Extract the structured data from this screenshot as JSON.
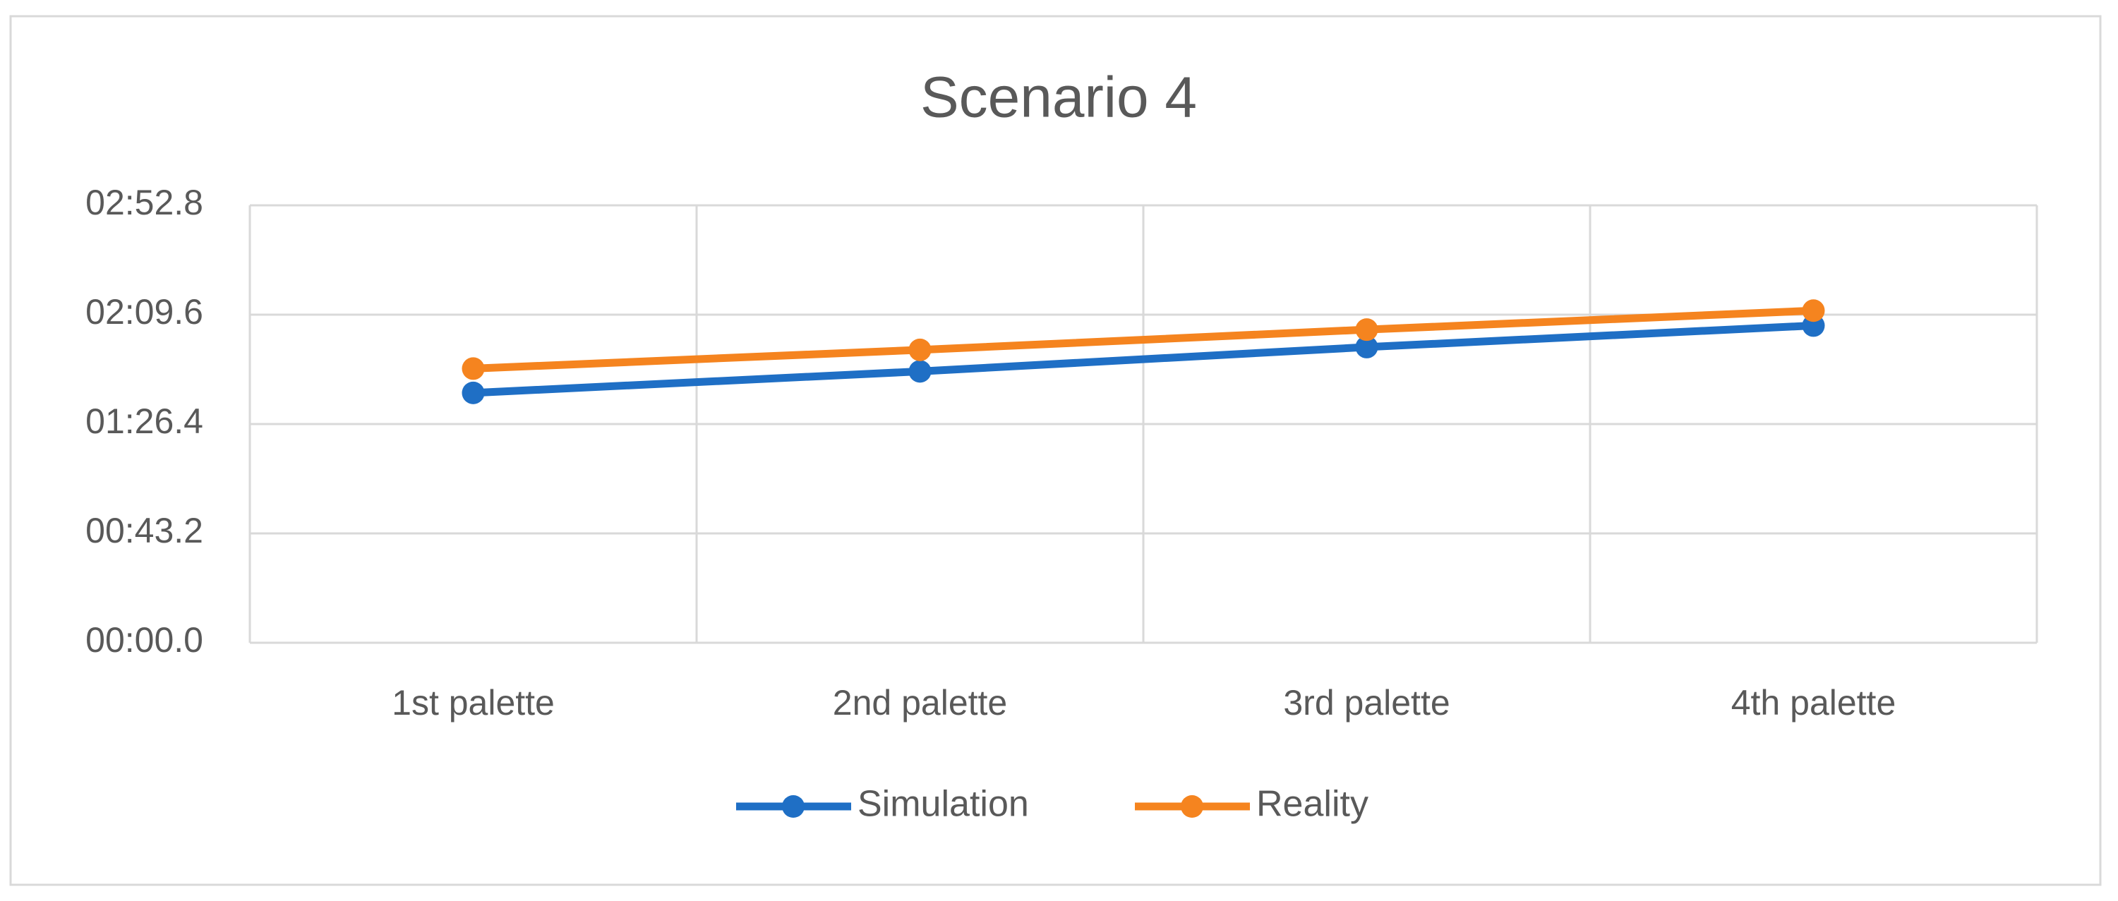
{
  "chart_data": {
    "type": "line",
    "title": "Scenario 4",
    "categories": [
      "1st palette",
      "2nd palette",
      "3rd palette",
      "4th palette"
    ],
    "series": [
      {
        "name": "Simulation",
        "color": "#1f6fc5",
        "values": [
          98.7,
          107.2,
          116.8,
          125.3
        ]
      },
      {
        "name": "Reality",
        "color": "#f5841f",
        "values": [
          108.3,
          115.7,
          123.7,
          131.2
        ]
      }
    ],
    "ylim": [
      0,
      172.8
    ],
    "yticks": [
      {
        "value": 0,
        "label": "00:00.0"
      },
      {
        "value": 43.2,
        "label": "00:43.2"
      },
      {
        "value": 86.4,
        "label": "01:26.4"
      },
      {
        "value": 129.6,
        "label": "02:09.6"
      },
      {
        "value": 172.8,
        "label": "02:52.8"
      }
    ],
    "grid": true,
    "legend": "bottom"
  }
}
